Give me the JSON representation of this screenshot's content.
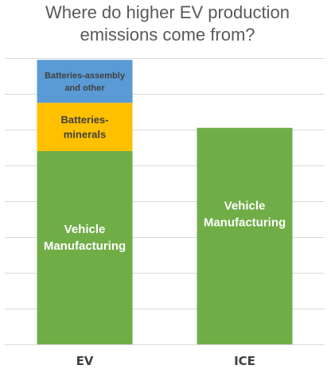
{
  "chart_data": {
    "type": "bar",
    "stacked": true,
    "title": [
      "Where do higher EV production",
      "emissions come from?"
    ],
    "categories": [
      "EV",
      "ICE"
    ],
    "ylim": [
      0,
      8
    ],
    "grid": true,
    "series": [
      {
        "name": "Vehicle Manufacturing",
        "label_lines": [
          "Vehicle",
          "Manufacturing"
        ],
        "color": "#70AD47",
        "label_color": "#ffffff",
        "values": [
          5.4,
          6.05
        ]
      },
      {
        "name": "Batteries-minerals",
        "label_lines": [
          "Batteries-",
          "minerals"
        ],
        "color": "#FFC000",
        "label_color": "#404040",
        "values": [
          1.35,
          0
        ]
      },
      {
        "name": "Batteries-assembly and other",
        "label_lines": [
          "Batteries-assembly",
          "and other"
        ],
        "color": "#5B9BD5",
        "label_color": "#404040",
        "values": [
          1.2,
          0
        ]
      }
    ]
  }
}
